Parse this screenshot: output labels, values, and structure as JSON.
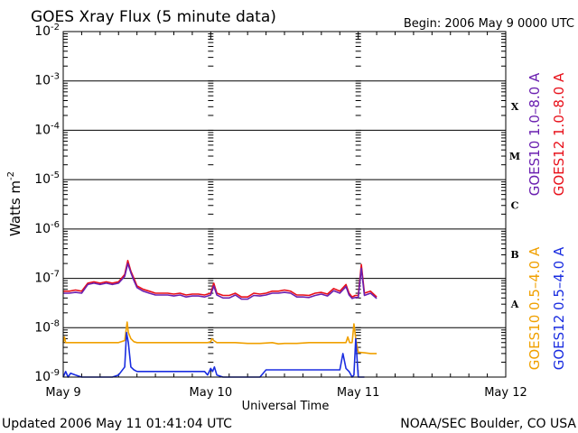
{
  "header": {
    "title": "GOES Xray Flux (5 minute data)",
    "begin": "Begin:  2006 May 9 0000 UTC"
  },
  "footer": {
    "updated": "Updated 2006 May 11 01:41:04 UTC",
    "credit": "NOAA/SEC Boulder, CO USA"
  },
  "colors": {
    "goes10_long": "#6a1fb0",
    "goes12_long": "#e8101a",
    "goes10_short": "#f0a000",
    "goes12_short": "#1a2de0",
    "axis": "#000000"
  },
  "chart_data": {
    "type": "line",
    "title": "GOES Xray Flux (5 minute data)",
    "xlabel": "Universal Time",
    "ylabel": "Watts m",
    "ylabel_superscript": "-2",
    "y_scale": "log",
    "ylim": [
      1e-09,
      0.01
    ],
    "xlim": [
      0,
      72
    ],
    "x_units": "hours since 2006 May 9 0000 UTC",
    "x_ticks": [
      {
        "label": "May 9",
        "x": 0
      },
      {
        "label": "May 10",
        "x": 24
      },
      {
        "label": "May 11",
        "x": 48
      },
      {
        "label": "May 12",
        "x": 72
      }
    ],
    "y_ticks": [
      {
        "mantissa": "10",
        "exp": "-9",
        "value": 1e-09
      },
      {
        "mantissa": "10",
        "exp": "-8",
        "value": 1e-08
      },
      {
        "mantissa": "10",
        "exp": "-7",
        "value": 1e-07
      },
      {
        "mantissa": "10",
        "exp": "-6",
        "value": 1e-06
      },
      {
        "mantissa": "10",
        "exp": "-5",
        "value": 1e-05
      },
      {
        "mantissa": "10",
        "exp": "-4",
        "value": 0.0001
      },
      {
        "mantissa": "10",
        "exp": "-3",
        "value": 0.001
      },
      {
        "mantissa": "10",
        "exp": "-2",
        "value": 0.01
      }
    ],
    "flare_classes": [
      {
        "label": "X",
        "value": 0.000316
      },
      {
        "label": "M",
        "value": 3.16e-05
      },
      {
        "label": "C",
        "value": 3.16e-06
      },
      {
        "label": "B",
        "value": 3.16e-07
      },
      {
        "label": "A",
        "value": 3.16e-08
      }
    ],
    "grid": "horizontal lines at each decade",
    "legend_position": "right",
    "series": [
      {
        "name": "GOES12 1.0–8.0 A",
        "color": "#e8101a",
        "x": [
          0,
          1,
          2,
          3,
          4,
          5,
          6,
          7,
          8,
          9,
          10,
          10.5,
          11,
          11.5,
          12,
          13,
          14,
          15,
          16,
          17,
          18,
          19,
          20,
          21,
          22,
          23,
          24,
          24.5,
          25,
          26,
          27,
          28,
          29,
          30,
          31,
          32,
          33,
          34,
          35,
          36,
          37,
          38,
          39,
          40,
          41,
          42,
          43,
          44,
          45,
          46,
          46.5,
          47,
          47.5,
          48,
          48.5,
          49,
          50,
          51
        ],
        "y": [
          5.5e-08,
          5.5e-08,
          5.8e-08,
          5.5e-08,
          8e-08,
          8.5e-08,
          8e-08,
          8.5e-08,
          8e-08,
          8.5e-08,
          1.2e-07,
          2.3e-07,
          1.4e-07,
          1e-07,
          7e-08,
          6e-08,
          5.5e-08,
          5e-08,
          5e-08,
          5e-08,
          4.8e-08,
          5e-08,
          4.6e-08,
          4.8e-08,
          4.8e-08,
          4.6e-08,
          5e-08,
          8e-08,
          5e-08,
          4.5e-08,
          4.5e-08,
          5e-08,
          4.2e-08,
          4.2e-08,
          5e-08,
          4.8e-08,
          5e-08,
          5.5e-08,
          5.5e-08,
          5.8e-08,
          5.5e-08,
          4.6e-08,
          4.6e-08,
          4.5e-08,
          5e-08,
          5.2e-08,
          4.8e-08,
          6.2e-08,
          5.5e-08,
          7.5e-08,
          5e-08,
          4.2e-08,
          4.5e-08,
          4.5e-08,
          1.9e-07,
          5e-08,
          5.5e-08,
          4.2e-08
        ]
      },
      {
        "name": "GOES10 1.0–8.0 A",
        "color": "#6a1fb0",
        "x": [
          0,
          1,
          2,
          3,
          4,
          5,
          6,
          7,
          8,
          9,
          10,
          10.5,
          11,
          11.5,
          12,
          13,
          14,
          15,
          16,
          17,
          18,
          19,
          20,
          21,
          22,
          23,
          24,
          24.5,
          25,
          26,
          27,
          28,
          29,
          30,
          31,
          32,
          33,
          34,
          35,
          36,
          37,
          38,
          39,
          40,
          41,
          42,
          43,
          44,
          45,
          46,
          46.5,
          47,
          47.5,
          48,
          48.5,
          49,
          50,
          51
        ],
        "y": [
          5e-08,
          5e-08,
          5.2e-08,
          5e-08,
          7.5e-08,
          8e-08,
          7.5e-08,
          8e-08,
          7.5e-08,
          8e-08,
          1.1e-07,
          2e-07,
          1.3e-07,
          9e-08,
          6.5e-08,
          5.5e-08,
          5e-08,
          4.6e-08,
          4.6e-08,
          4.6e-08,
          4.4e-08,
          4.6e-08,
          4.2e-08,
          4.4e-08,
          4.4e-08,
          4.2e-08,
          4.6e-08,
          7e-08,
          4.6e-08,
          4e-08,
          4e-08,
          4.6e-08,
          3.8e-08,
          3.8e-08,
          4.5e-08,
          4.4e-08,
          4.6e-08,
          5e-08,
          5e-08,
          5.2e-08,
          5e-08,
          4.2e-08,
          4.2e-08,
          4.1e-08,
          4.5e-08,
          4.8e-08,
          4.4e-08,
          5.6e-08,
          5e-08,
          6.8e-08,
          4.6e-08,
          3.9e-08,
          4.1e-08,
          4.1e-08,
          1.6e-07,
          4.5e-08,
          5e-08,
          3.9e-08
        ]
      },
      {
        "name": "GOES10 0.5–4.0 A",
        "color": "#f0a000",
        "x": [
          0,
          0.2,
          0.4,
          1,
          2,
          3,
          4,
          5,
          6,
          7,
          8,
          9,
          10,
          10.4,
          10.6,
          11,
          11.5,
          12,
          14,
          16,
          18,
          20,
          22,
          23.5,
          24,
          24.2,
          24.5,
          25,
          26,
          28,
          30,
          32,
          34,
          35,
          36,
          38,
          40,
          42,
          44,
          45,
          46,
          46.3,
          46.6,
          47,
          47.3,
          47.6,
          48,
          49,
          50,
          51
        ],
        "y": [
          5e-09,
          6.5e-09,
          5e-09,
          5e-09,
          5e-09,
          5e-09,
          5e-09,
          5e-09,
          5e-09,
          5e-09,
          5e-09,
          5e-09,
          5.5e-09,
          1.3e-08,
          8e-09,
          6e-09,
          5.2e-09,
          5e-09,
          5e-09,
          5e-09,
          5e-09,
          5e-09,
          5e-09,
          5e-09,
          5.2e-09,
          6e-09,
          5.5e-09,
          5e-09,
          5e-09,
          5e-09,
          4.8e-09,
          4.8e-09,
          5e-09,
          4.7e-09,
          4.8e-09,
          4.8e-09,
          5e-09,
          5e-09,
          5e-09,
          5e-09,
          5e-09,
          6.5e-09,
          5e-09,
          5e-09,
          1.2e-08,
          6e-09,
          3.2e-09,
          3.1e-09,
          3e-09,
          3e-09
        ]
      },
      {
        "name": "GOES12 0.5–4.0 A",
        "color": "#1a2de0",
        "x": [
          0,
          0.4,
          0.8,
          1.2,
          2,
          3,
          4,
          5,
          6,
          7,
          8,
          9,
          10,
          10.3,
          10.6,
          11,
          11.5,
          12,
          14,
          16,
          18,
          20,
          22,
          23,
          23.5,
          24,
          24.3,
          24.6,
          25,
          26,
          28,
          30,
          32,
          33,
          34,
          35,
          36,
          38,
          40,
          42,
          44,
          45,
          45.5,
          46,
          46.5,
          47,
          47.3,
          47.6,
          48,
          48.5,
          49
        ],
        "y": [
          1e-09,
          1.3e-09,
          1e-09,
          1.2e-09,
          1.1e-09,
          1e-09,
          1e-09,
          1e-09,
          1e-09,
          1e-09,
          1e-09,
          1.1e-09,
          1.6e-09,
          8e-09,
          5e-09,
          1.6e-09,
          1.4e-09,
          1.3e-09,
          1.3e-09,
          1.3e-09,
          1.3e-09,
          1.3e-09,
          1.3e-09,
          1.3e-09,
          1.1e-09,
          1.5e-09,
          1.3e-09,
          1.6e-09,
          1.1e-09,
          1e-09,
          1e-09,
          1e-09,
          1e-09,
          1.4e-09,
          1.4e-09,
          1.4e-09,
          1.4e-09,
          1.4e-09,
          1.4e-09,
          1.4e-09,
          1.4e-09,
          1.4e-09,
          3e-09,
          1.5e-09,
          1.3e-09,
          1e-09,
          1.1e-09,
          6e-09,
          1e-09,
          1e-09,
          1e-09
        ]
      }
    ]
  }
}
